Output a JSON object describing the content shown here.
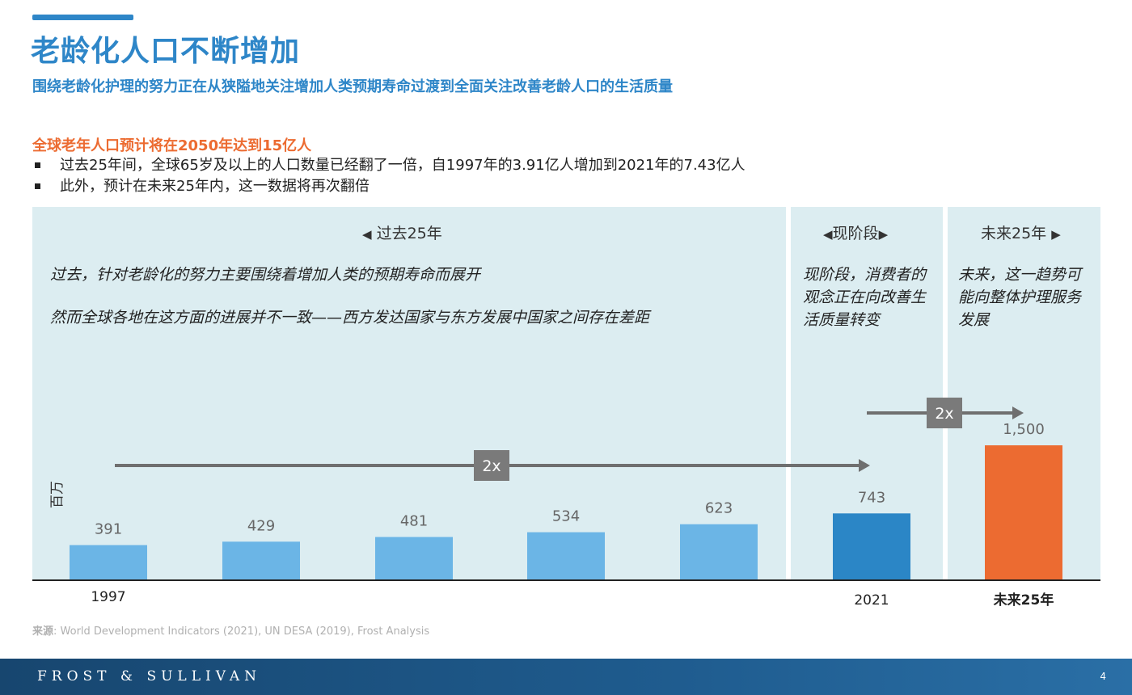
{
  "header": {
    "title": "老龄化人口不断增加",
    "subtitle": "围绕老龄化护理的努力正在从狭隘地关注增加人类预期寿命过渡到全面关注改善老龄人口的生活质量"
  },
  "summary": {
    "highlight": "全球老年人口预计将在2050年达到15亿人",
    "bullets": [
      "过去25年间，全球65岁及以上的人口数量已经翻了一倍，自1997年的3.91亿人增加到2021年的7.43亿人",
      "此外，预计在未来25年内，这一数据将再次翻倍"
    ]
  },
  "panels": {
    "past": {
      "heading": "过去25年",
      "text1": "过去，针对老龄化的努力主要围绕着增加人类的预期寿命而展开",
      "text2": "然而全球各地在这方面的进展并不一致——西方发达国家与东方发展中国家之间存在差距"
    },
    "now": {
      "heading": "现阶段",
      "text": "现阶段，消费者的观念正在向改善生活质量转变"
    },
    "future": {
      "heading": "未来25年",
      "text": "未来，这一趋势可能向整体护理服务发展"
    }
  },
  "chart_data": {
    "type": "bar",
    "ylabel": "百万",
    "categories": [
      "1997",
      "",
      "",
      "",
      "",
      "2021",
      "未来25年"
    ],
    "values": [
      391,
      429,
      481,
      534,
      623,
      743,
      1500
    ],
    "value_labels": [
      "391",
      "429",
      "481",
      "534",
      "623",
      "743",
      "1,500"
    ],
    "bar_colors": [
      "#6bb5e6",
      "#6bb5e6",
      "#6bb5e6",
      "#6bb5e6",
      "#6bb5e6",
      "#2b86c6",
      "#ec6b31"
    ],
    "ylim": [
      0,
      1500
    ],
    "annotations": [
      {
        "label": "2x",
        "from": "1997",
        "to": "2021"
      },
      {
        "label": "2x",
        "from": "2021",
        "to": "未来25年"
      }
    ],
    "grid": false,
    "legend": "none"
  },
  "source": {
    "label": "来源",
    "text": ": World Development Indicators (2021), UN DESA (2019), Frost Analysis"
  },
  "footer": {
    "brand": "FROST & SULLIVAN",
    "page": "4"
  },
  "colors": {
    "brand_blue": "#2e86c8",
    "highlight_orange": "#ec6b31",
    "panel_bg": "#dcedf1",
    "footer_blue": "#1f5c8f"
  }
}
